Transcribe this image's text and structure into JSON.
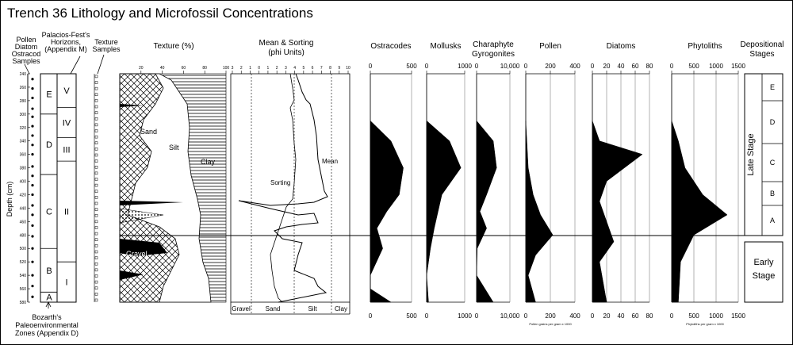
{
  "title": "Trench 36 Lithology and Microfossil Concentrations",
  "left_labels": {
    "samples": [
      "Pollen",
      "Diatom",
      "Ostracod",
      "Samples"
    ],
    "horizons": [
      "Palacios-Fest's",
      "Horizons,",
      "(Appendix M)"
    ],
    "texture_samples": [
      "Texture",
      "Samples"
    ],
    "zones": [
      "Bozarth's",
      "Paleoenvironmental",
      "Zones (Appendix D)"
    ],
    "depth_axis": "Depth (cm)"
  },
  "depth_ticks": [
    "240",
    "260",
    "280",
    "300",
    "320",
    "340",
    "360",
    "380",
    "400",
    "420",
    "440",
    "460",
    "480",
    "500",
    "520",
    "540",
    "560",
    "580"
  ],
  "zones": [
    "E",
    "D",
    "C",
    "B",
    "A"
  ],
  "horizons": [
    "V",
    "IV",
    "III",
    "II",
    "I"
  ],
  "panels": {
    "texture": {
      "title": "Texture (%)",
      "ticks": [
        "20",
        "40",
        "60",
        "80",
        "100"
      ],
      "labels": [
        "Sand",
        "Silt",
        "Clay",
        "Gravel"
      ]
    },
    "mean_sorting": {
      "title": [
        "Mean & Sorting",
        "(phi Units)"
      ],
      "ticks": [
        "3",
        "2",
        "1",
        "0",
        "1",
        "2",
        "3",
        "4",
        "5",
        "6",
        "7",
        "8",
        "9",
        "10"
      ],
      "bottom": [
        "Gravel",
        "Sand",
        "Silt",
        "Clay"
      ],
      "labels": [
        "Mean",
        "Sorting"
      ]
    },
    "ostracodes": {
      "title": [
        "Ostracodes"
      ],
      "ticks": [
        "0",
        "500"
      ]
    },
    "mollusks": {
      "title": [
        "Mollusks"
      ],
      "ticks": [
        "0",
        "1000"
      ]
    },
    "charaphyte": {
      "title": [
        "Charaphyte",
        "Gyrogonites"
      ],
      "ticks": [
        "0",
        "10,000"
      ]
    },
    "pollen": {
      "title": [
        "Pollen"
      ],
      "ticks": [
        "0",
        "200",
        "400"
      ],
      "note": "Pollen grains per gram x 1000"
    },
    "diatoms": {
      "title": [
        "Diatoms"
      ],
      "ticks": [
        "0",
        "20",
        "40",
        "60",
        "80"
      ]
    },
    "phytoliths": {
      "title": [
        "Phytoliths"
      ],
      "ticks": [
        "0",
        "500",
        "1000",
        "1500"
      ],
      "note": "Phytoliths per gram x 1000"
    }
  },
  "stages": {
    "title": [
      "Depositional",
      "Stages"
    ],
    "late": "Late Stage",
    "early": [
      "Early",
      "Stage"
    ],
    "substages": [
      "E",
      "D",
      "C",
      "B",
      "A"
    ]
  },
  "chart_data": [
    {
      "type": "area",
      "title": "Texture (%)",
      "y": [
        240,
        300,
        350,
        400,
        440,
        480,
        520,
        580
      ],
      "series": [
        {
          "name": "Sand",
          "values": [
            45,
            50,
            35,
            30,
            20,
            25,
            20,
            15
          ]
        },
        {
          "name": "Silt",
          "values": [
            40,
            30,
            40,
            45,
            50,
            40,
            50,
            55
          ]
        },
        {
          "name": "Clay",
          "values": [
            15,
            20,
            25,
            25,
            30,
            35,
            30,
            30
          ]
        }
      ]
    },
    {
      "type": "line",
      "title": "Mean & Sorting (phi Units)",
      "y": [
        300,
        340,
        380,
        420,
        470,
        520,
        580
      ],
      "series": [
        {
          "name": "Mean",
          "values": [
            6,
            7,
            7.5,
            8,
            7,
            6,
            5
          ]
        },
        {
          "name": "Sorting",
          "values": [
            3,
            3,
            3.5,
            4,
            3,
            3,
            3
          ]
        }
      ]
    },
    {
      "type": "area",
      "title": "Ostracodes",
      "y": [
        310,
        340,
        380,
        420,
        445,
        470,
        500,
        540,
        560,
        580
      ],
      "values": [
        0,
        250,
        400,
        350,
        200,
        80,
        150,
        0,
        0,
        250
      ],
      "xlim": [
        0,
        500
      ]
    },
    {
      "type": "area",
      "title": "Mollusks",
      "y": [
        310,
        340,
        380,
        420,
        445,
        470,
        500,
        540,
        580
      ],
      "values": [
        0,
        600,
        900,
        400,
        300,
        200,
        100,
        0,
        50
      ],
      "xlim": [
        0,
        1000
      ]
    },
    {
      "type": "area",
      "title": "Charaphyte Gyrogonites",
      "y": [
        310,
        340,
        380,
        420,
        445,
        470,
        500,
        540,
        580
      ],
      "values": [
        0,
        5000,
        6000,
        3000,
        1000,
        3000,
        200,
        0,
        5000
      ],
      "xlim": [
        0,
        10000
      ]
    },
    {
      "type": "area",
      "title": "Pollen",
      "y": [
        310,
        380,
        420,
        450,
        480,
        510,
        540,
        580
      ],
      "values": [
        0,
        20,
        60,
        120,
        220,
        80,
        20,
        80
      ],
      "xlim": [
        0,
        400
      ]
    },
    {
      "type": "area",
      "title": "Diatoms",
      "y": [
        310,
        340,
        360,
        400,
        430,
        460,
        490,
        520,
        580
      ],
      "values": [
        0,
        10,
        70,
        20,
        10,
        20,
        30,
        10,
        20
      ],
      "xlim": [
        0,
        80
      ]
    },
    {
      "type": "area",
      "title": "Phytoliths",
      "y": [
        310,
        340,
        380,
        420,
        450,
        480,
        520,
        580
      ],
      "values": [
        0,
        150,
        300,
        700,
        1250,
        500,
        200,
        150
      ],
      "xlim": [
        0,
        1500
      ]
    }
  ]
}
